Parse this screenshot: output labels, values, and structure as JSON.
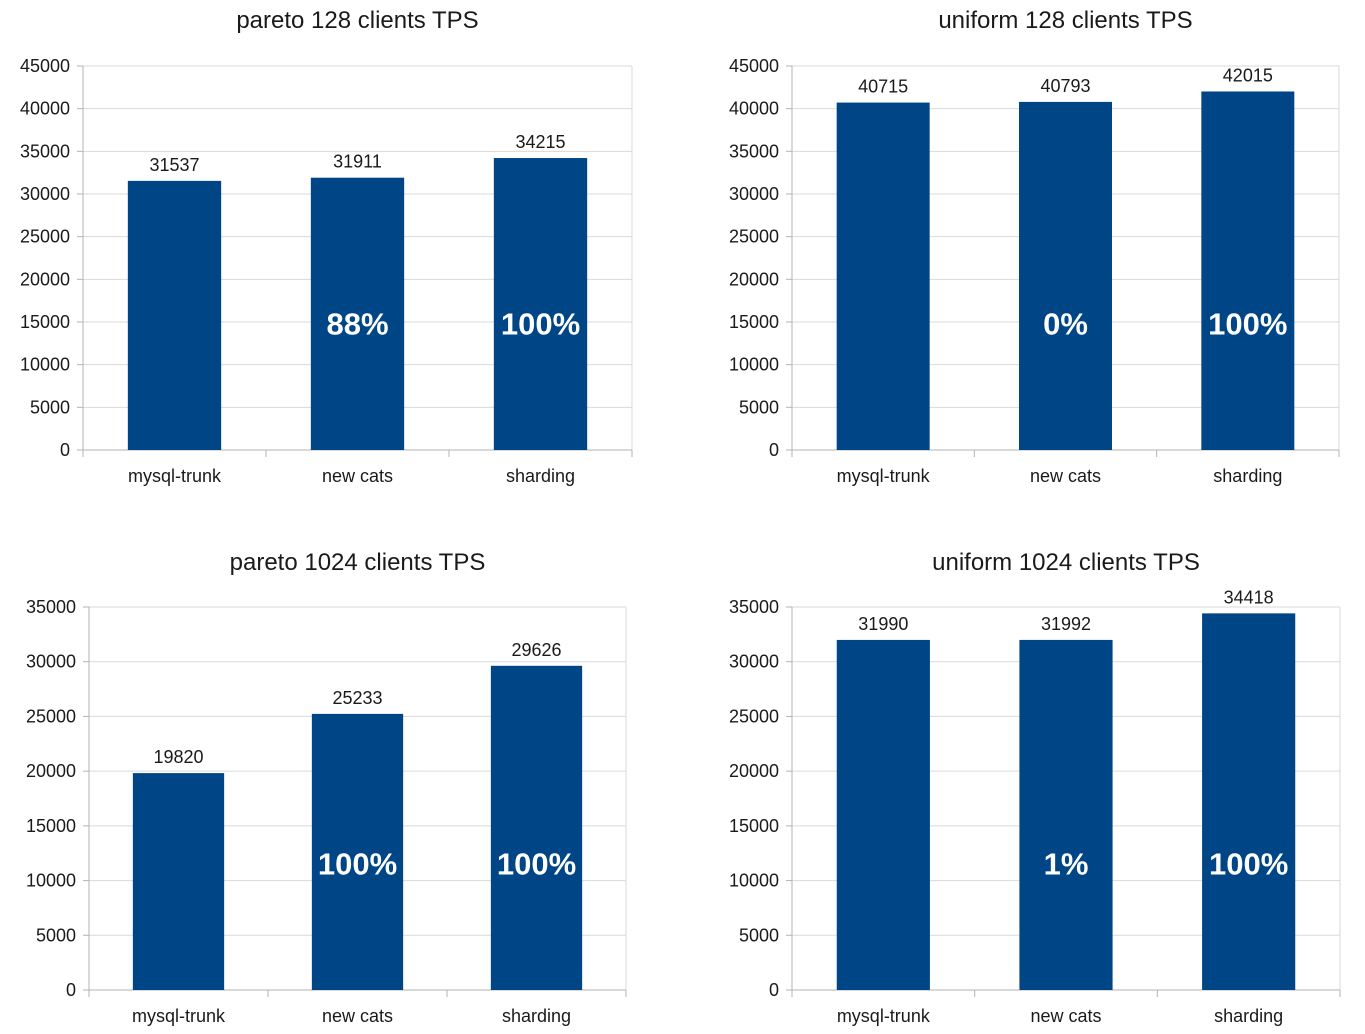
{
  "colors": {
    "bar": "#004586",
    "grid": "#d9d9d9",
    "axis": "#b3b3b3",
    "text": "#1a1a1a",
    "overlay": "#ffffff"
  },
  "chart_data": [
    {
      "type": "bar",
      "title": "pareto 128 clients TPS",
      "categories": [
        "mysql-trunk",
        "new cats",
        "sharding"
      ],
      "values": [
        31537,
        31911,
        34215
      ],
      "value_labels": [
        "31537",
        "31911",
        "34215"
      ],
      "overlay_labels": [
        "",
        "88%",
        "100%"
      ],
      "yticks": [
        "0",
        "5000",
        "10000",
        "15000",
        "20000",
        "25000",
        "30000",
        "35000",
        "40000",
        "45000"
      ],
      "ylim": [
        0,
        45000
      ],
      "grid": true
    },
    {
      "type": "bar",
      "title": "uniform 128 clients TPS",
      "categories": [
        "mysql-trunk",
        "new cats",
        "sharding"
      ],
      "values": [
        40715,
        40793,
        42015
      ],
      "value_labels": [
        "40715",
        "40793",
        "42015"
      ],
      "overlay_labels": [
        "",
        "0%",
        "100%"
      ],
      "yticks": [
        "0",
        "5000",
        "10000",
        "15000",
        "20000",
        "25000",
        "30000",
        "35000",
        "40000",
        "45000"
      ],
      "ylim": [
        0,
        45000
      ],
      "grid": true
    },
    {
      "type": "bar",
      "title": "pareto 1024 clients TPS",
      "categories": [
        "mysql-trunk",
        "new cats",
        "sharding"
      ],
      "values": [
        19820,
        25233,
        29626
      ],
      "value_labels": [
        "19820",
        "25233",
        "29626"
      ],
      "overlay_labels": [
        "",
        "100%",
        "100%"
      ],
      "yticks": [
        "0",
        "5000",
        "10000",
        "15000",
        "20000",
        "25000",
        "30000",
        "35000"
      ],
      "ylim": [
        0,
        35000
      ],
      "grid": true
    },
    {
      "type": "bar",
      "title": "uniform 1024 clients TPS",
      "categories": [
        "mysql-trunk",
        "new cats",
        "sharding"
      ],
      "values": [
        31990,
        31992,
        34418
      ],
      "value_labels": [
        "31990",
        "31992",
        "34418"
      ],
      "overlay_labels": [
        "",
        "1%",
        "100%"
      ],
      "yticks": [
        "0",
        "5000",
        "10000",
        "15000",
        "20000",
        "25000",
        "30000",
        "35000"
      ],
      "ylim": [
        0,
        35000
      ],
      "grid": true
    }
  ]
}
